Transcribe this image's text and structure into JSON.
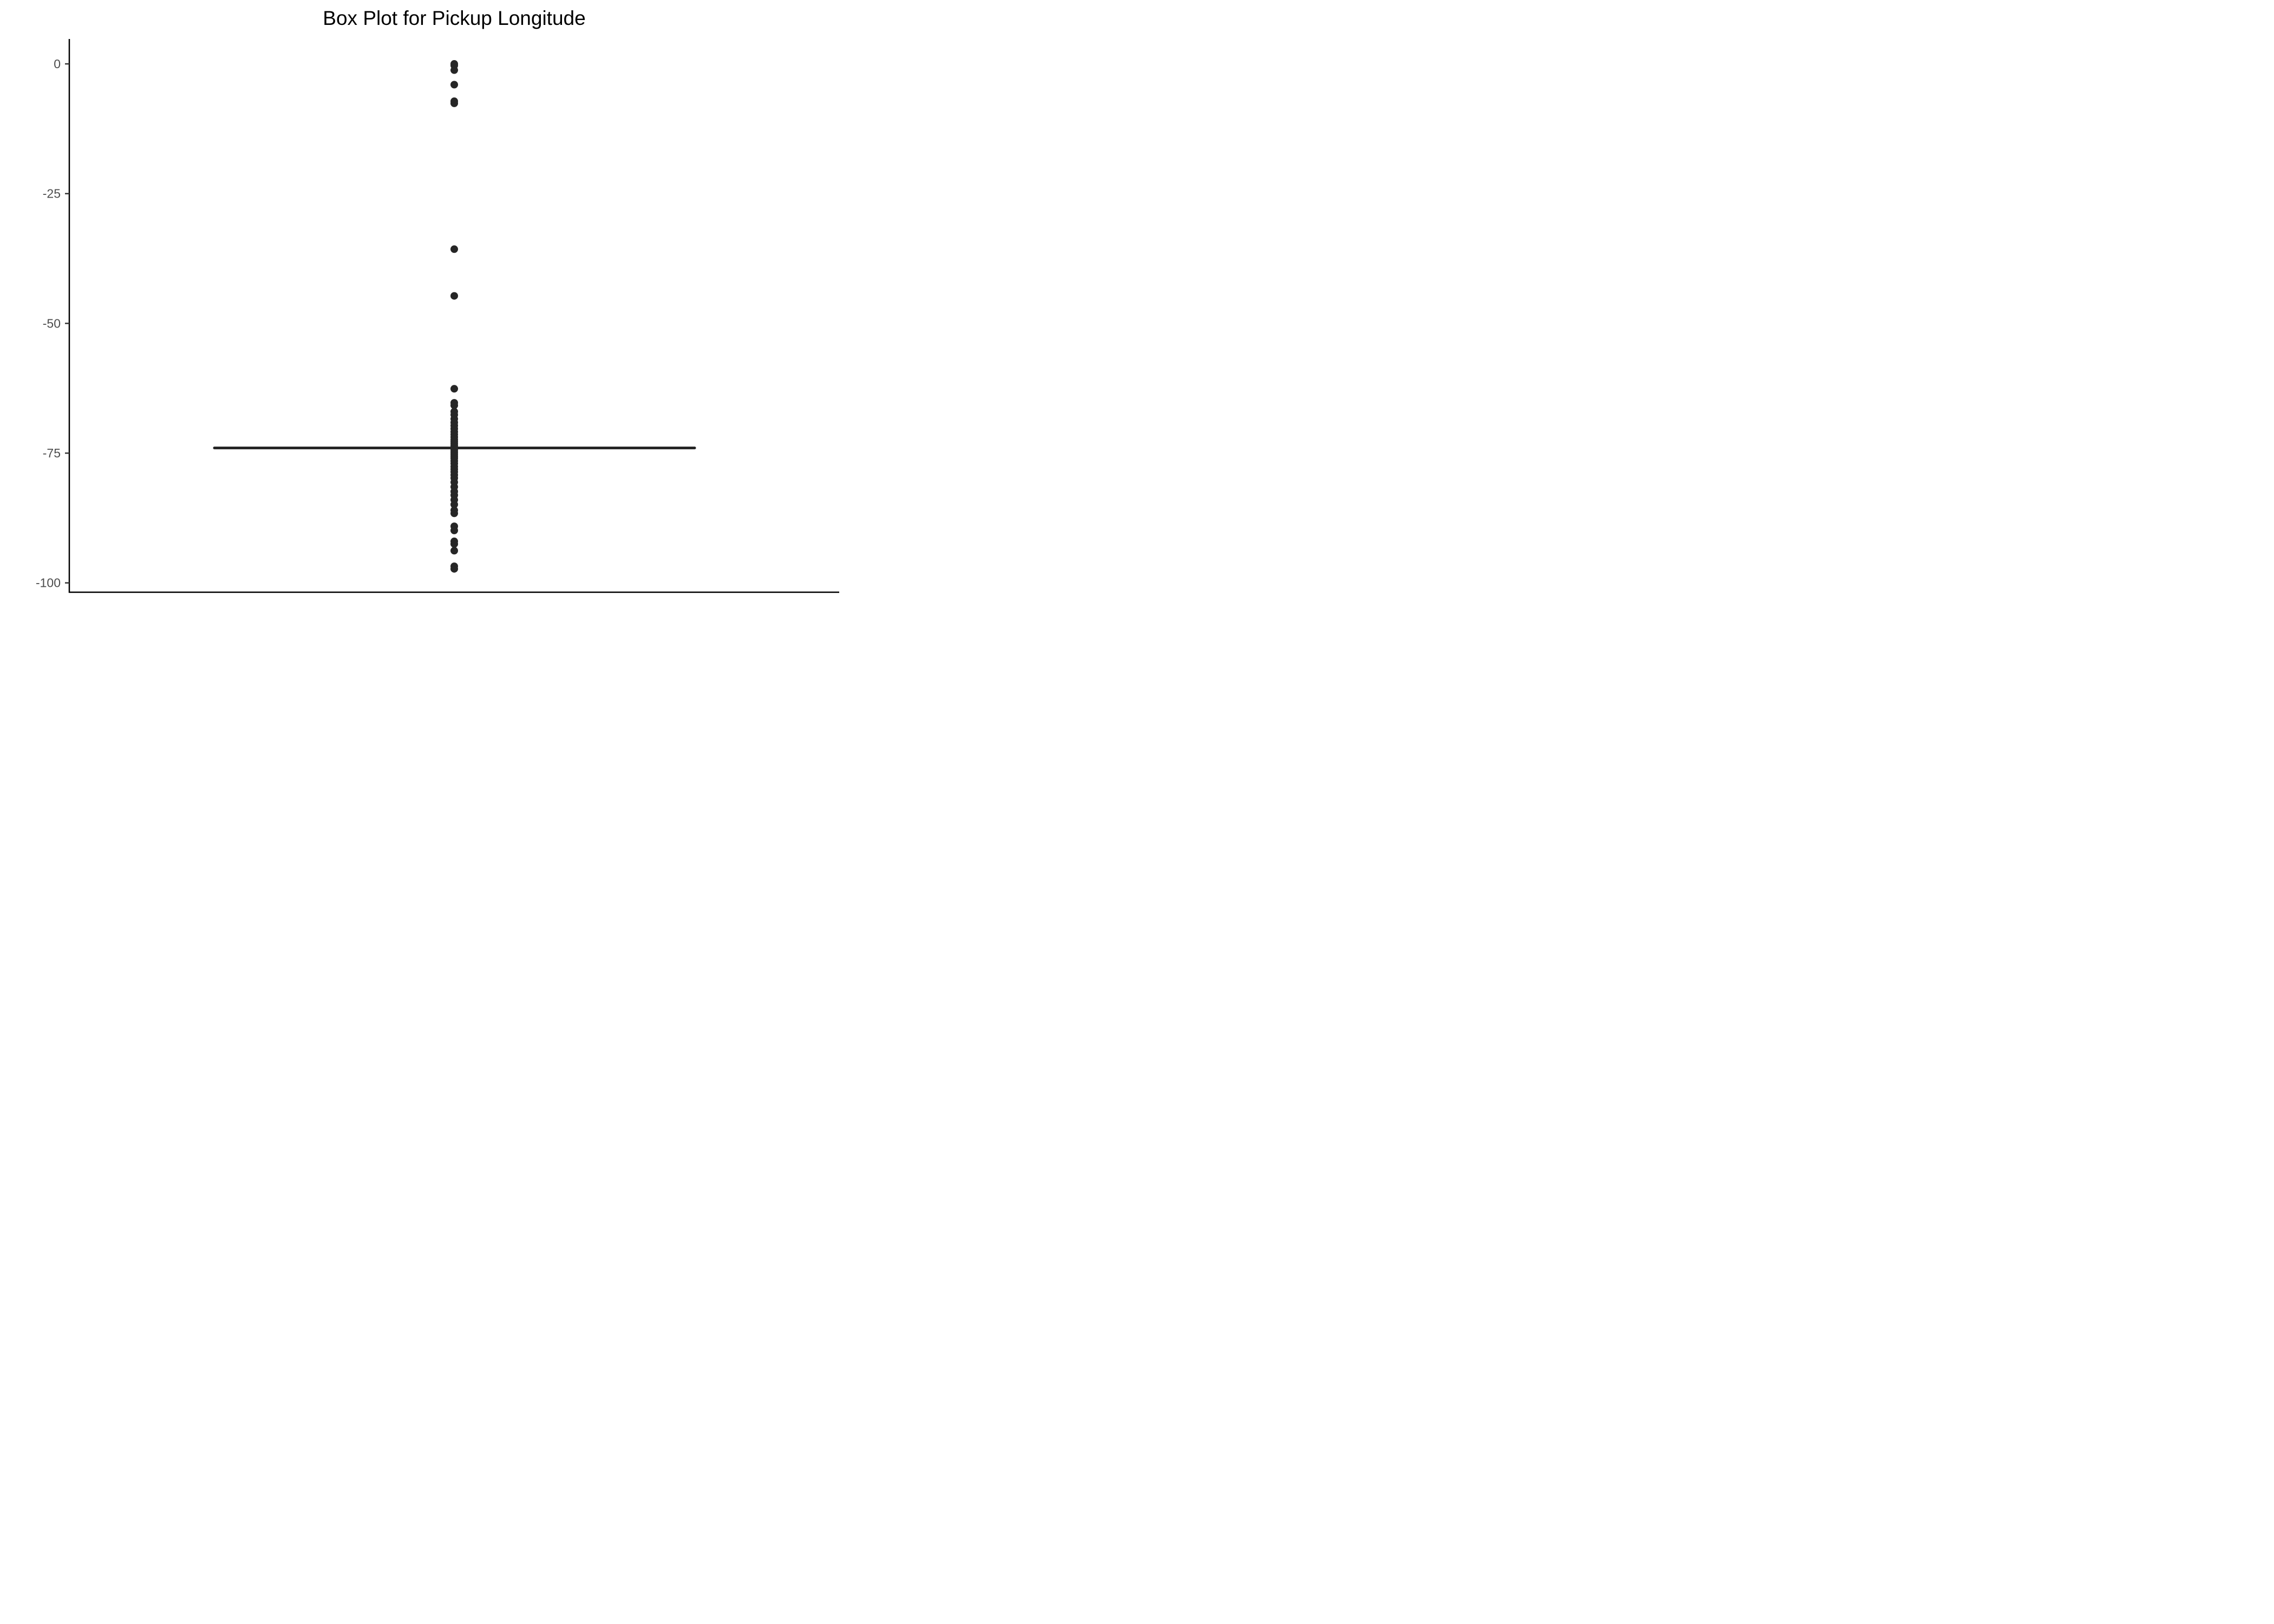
{
  "chart_data": {
    "type": "box",
    "title": "Box Plot for Pickup Longitude",
    "xlabel": "",
    "ylabel": "",
    "ylim": [
      -101.8,
      4.8
    ],
    "y_ticks": [
      {
        "value": 0,
        "label": "0"
      },
      {
        "value": -25,
        "label": "-25"
      },
      {
        "value": -50,
        "label": "-50"
      },
      {
        "value": -75,
        "label": "-75"
      },
      {
        "value": -100,
        "label": "-100"
      }
    ],
    "x_ticks": [],
    "grid": false,
    "legend": "none",
    "box": {
      "q1": -74.0,
      "median": -74.0,
      "q3": -74.0,
      "whisker_low": -74.0,
      "whisker_high": -74.0
    },
    "outliers": [
      0.0,
      -0.3,
      -1.2,
      -4.0,
      -7.2,
      -7.6,
      -35.7,
      -44.7,
      -62.6,
      -65.3,
      -65.8,
      -67.0,
      -67.6,
      -68.4,
      -69.1,
      -69.7,
      -70.3,
      -70.9,
      -71.4,
      -71.9,
      -72.4,
      -72.8,
      -73.2,
      -73.6,
      -74.4,
      -74.8,
      -75.2,
      -75.6,
      -76.0,
      -76.5,
      -77.0,
      -77.6,
      -78.1,
      -78.6,
      -79.2,
      -79.8,
      -80.6,
      -81.5,
      -82.4,
      -83.1,
      -84.0,
      -84.9,
      -86.0,
      -86.6,
      -89.1,
      -89.9,
      -92.0,
      -92.5,
      -93.8,
      -96.8,
      -97.3
    ],
    "colors": {
      "box": "#262626",
      "outlier": "#262626",
      "axis": "#000000",
      "tick_label": "#4d4d4d"
    }
  }
}
